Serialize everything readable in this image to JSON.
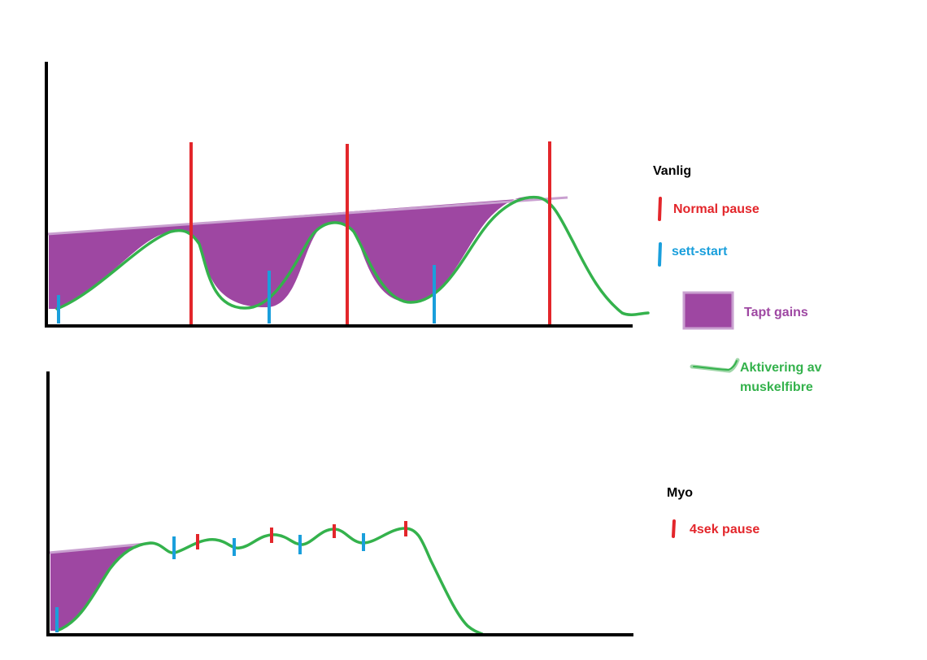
{
  "colors": {
    "axis": "#000000",
    "normal_pause": "#e3262b",
    "set_start": "#1a9fdc",
    "lost_gains": "#9e47a2",
    "activation": "#34b24c"
  },
  "top_diagram": {
    "title": "Vanlig",
    "legend": {
      "normal_pause": "Normal pause",
      "set_start": "sett-start",
      "lost_gains": "Tapt gains",
      "activation": "Aktivering av muskelfibre"
    }
  },
  "bottom_diagram": {
    "title": "Myo",
    "legend": {
      "pause": "4sek pause"
    }
  }
}
